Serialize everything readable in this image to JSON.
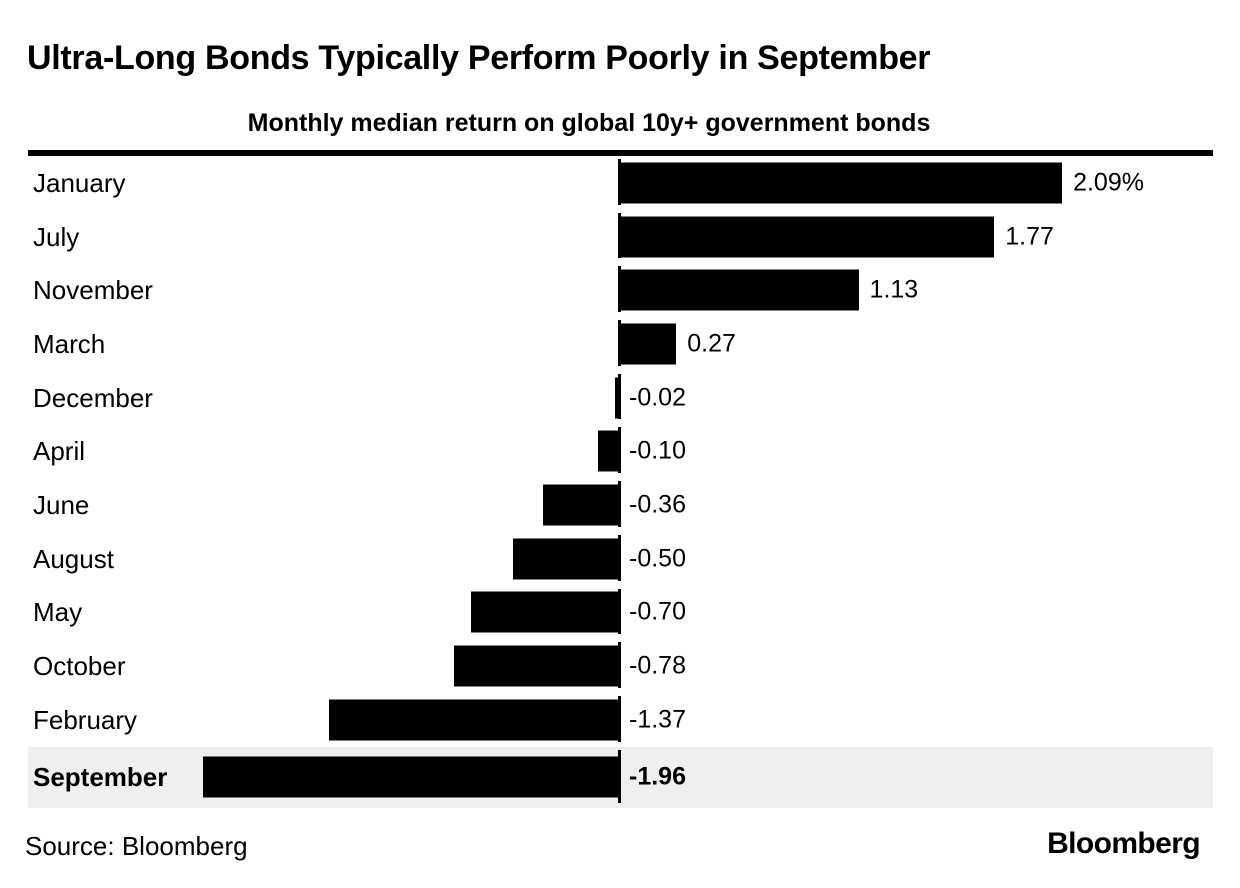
{
  "header": {
    "title": "Ultra-Long Bonds Typically Perform Poorly in September",
    "subtitle": "Monthly median return on global 10y+ government bonds"
  },
  "footer": {
    "source": "Source: Bloomberg",
    "logo": "Bloomberg"
  },
  "colors": {
    "bar": "#000000",
    "text": "#000000",
    "highlight_row_bg": "#efefef",
    "rule": "#000000"
  },
  "chart_data": {
    "type": "bar",
    "orientation": "horizontal",
    "title": "Ultra-Long Bonds Typically Perform Poorly in September",
    "subtitle": "Monthly median return on global 10y+ government bonds",
    "value_unit": "percent",
    "xlim": [
      -2.8,
      2.8
    ],
    "grid": false,
    "legend": false,
    "categories": [
      "January",
      "July",
      "November",
      "March",
      "December",
      "April",
      "June",
      "August",
      "May",
      "October",
      "February",
      "September"
    ],
    "values": [
      2.09,
      1.77,
      1.13,
      0.27,
      -0.02,
      -0.1,
      -0.36,
      -0.5,
      -0.7,
      -0.78,
      -1.37,
      -1.96
    ],
    "bars": [
      {
        "month": "January",
        "value": 2.09,
        "label": "2.09%",
        "highlight": false
      },
      {
        "month": "July",
        "value": 1.77,
        "label": "1.77",
        "highlight": false
      },
      {
        "month": "November",
        "value": 1.13,
        "label": "1.13",
        "highlight": false
      },
      {
        "month": "March",
        "value": 0.27,
        "label": "0.27",
        "highlight": false
      },
      {
        "month": "December",
        "value": -0.02,
        "label": "-0.02",
        "highlight": false
      },
      {
        "month": "April",
        "value": -0.1,
        "label": "-0.10",
        "highlight": false
      },
      {
        "month": "June",
        "value": -0.36,
        "label": "-0.36",
        "highlight": false
      },
      {
        "month": "August",
        "value": -0.5,
        "label": "-0.50",
        "highlight": false
      },
      {
        "month": "May",
        "value": -0.7,
        "label": "-0.70",
        "highlight": false
      },
      {
        "month": "October",
        "value": -0.78,
        "label": "-0.78",
        "highlight": false
      },
      {
        "month": "February",
        "value": -1.37,
        "label": "-1.37",
        "highlight": false
      },
      {
        "month": "September",
        "value": -1.96,
        "label": "-1.96",
        "highlight": true
      }
    ]
  }
}
